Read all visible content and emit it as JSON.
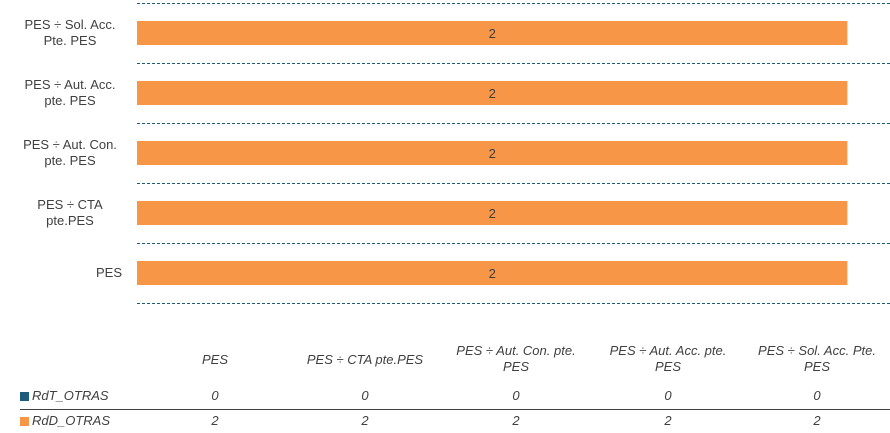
{
  "chart_data": {
    "type": "bar",
    "orientation": "horizontal",
    "categories": [
      "PES",
      "PES ÷ CTA pte.PES",
      "PES ÷ Aut. Con. pte. PES",
      "PES ÷ Aut. Acc. pte. PES",
      "PES ÷ Sol. Acc. Pte. PES"
    ],
    "axis_labels": [
      "PES",
      "PES ÷ CTA\npte.PES",
      "PES ÷ Aut. Con.\npte. PES",
      "PES ÷ Aut. Acc.\npte. PES",
      "PES ÷ Sol. Acc.\nPte. PES"
    ],
    "table_headers": [
      "PES",
      "PES ÷ CTA pte.PES",
      "PES ÷ Aut. Con. pte.\nPES",
      "PES ÷ Aut. Acc. pte.\nPES",
      "PES ÷ Sol. Acc. Pte.\nPES"
    ],
    "series": [
      {
        "name": "RdT_OTRAS",
        "values": [
          0,
          0,
          0,
          0,
          0
        ],
        "color": "#1f5c7a"
      },
      {
        "name": "RdD_OTRAS",
        "values": [
          2,
          2,
          2,
          2,
          2
        ],
        "color": "#f79646"
      }
    ],
    "xlim": [
      0,
      2.12
    ],
    "grid": "dashed horizontal separators",
    "data_labels": true
  }
}
